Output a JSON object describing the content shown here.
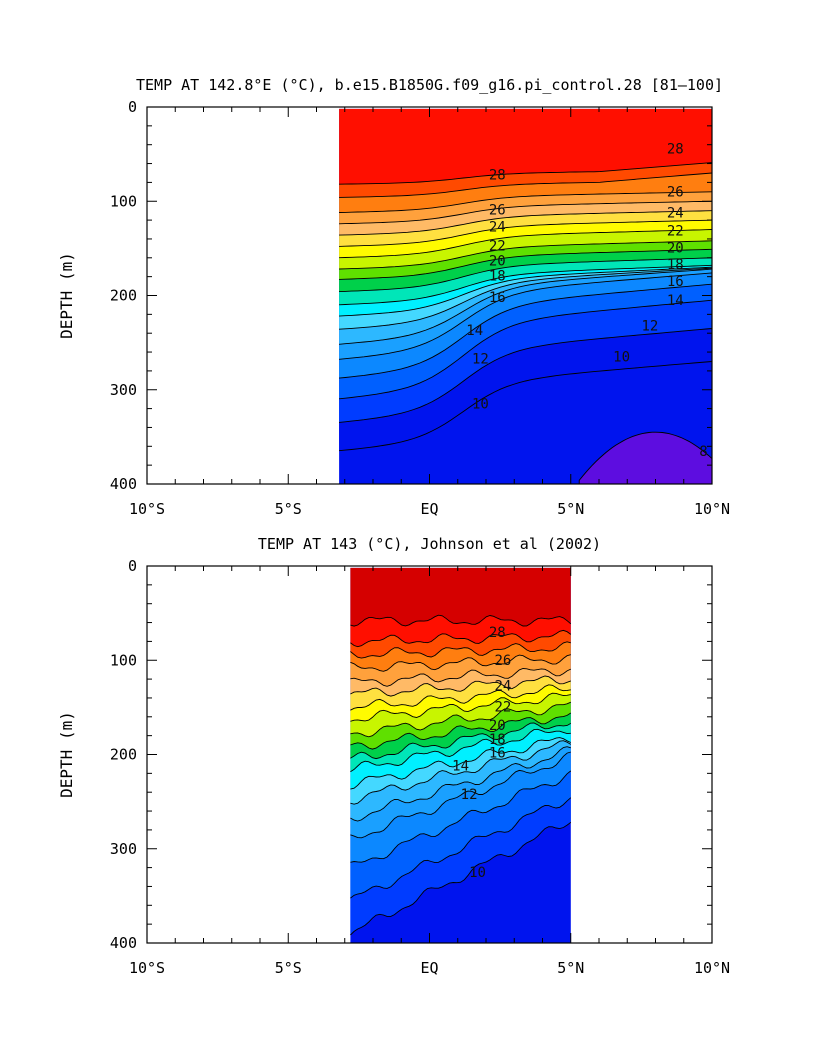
{
  "chart_data": [
    {
      "type": "heatmap",
      "title": "TEMP AT 142.8°E (°C), b.e15.B1850G.f09_g16.pi_control.28 [81–100]",
      "ylabel": "DEPTH (m)",
      "xlabel": "",
      "xlim": [
        -10,
        10
      ],
      "ylim": [
        0,
        400
      ],
      "y_inverted": true,
      "xticks": [
        -10,
        -5,
        0,
        5,
        10
      ],
      "xtick_labels": [
        "10°S",
        "5°S",
        "EQ",
        "5°N",
        "10°N"
      ],
      "yticks": [
        0,
        100,
        200,
        300,
        400
      ],
      "ytick_labels": [
        "0",
        "100",
        "200",
        "300",
        "400"
      ],
      "data_extent_lat": [
        -3.2,
        10
      ],
      "contour_interval": 1,
      "contour_labels": [
        {
          "text": "28",
          "lat": 2.4,
          "depth": 75
        },
        {
          "text": "28",
          "lat": 8.7,
          "depth": 47
        },
        {
          "text": "26",
          "lat": 2.4,
          "depth": 112
        },
        {
          "text": "26",
          "lat": 8.7,
          "depth": 93
        },
        {
          "text": "24",
          "lat": 2.4,
          "depth": 130
        },
        {
          "text": "24",
          "lat": 8.7,
          "depth": 115
        },
        {
          "text": "22",
          "lat": 2.4,
          "depth": 150
        },
        {
          "text": "22",
          "lat": 8.7,
          "depth": 134
        },
        {
          "text": "20",
          "lat": 2.4,
          "depth": 166
        },
        {
          "text": "20",
          "lat": 8.7,
          "depth": 152
        },
        {
          "text": "18",
          "lat": 2.4,
          "depth": 182
        },
        {
          "text": "18",
          "lat": 8.7,
          "depth": 170
        },
        {
          "text": "16",
          "lat": 2.4,
          "depth": 205
        },
        {
          "text": "16",
          "lat": 8.7,
          "depth": 188
        },
        {
          "text": "14",
          "lat": 1.6,
          "depth": 240
        },
        {
          "text": "14",
          "lat": 8.7,
          "depth": 208
        },
        {
          "text": "12",
          "lat": 1.8,
          "depth": 270
        },
        {
          "text": "12",
          "lat": 7.8,
          "depth": 235
        },
        {
          "text": "10",
          "lat": 1.8,
          "depth": 318
        },
        {
          "text": "10",
          "lat": 6.8,
          "depth": 268
        },
        {
          "text": "8",
          "lat": 9.7,
          "depth": 368
        }
      ]
    },
    {
      "type": "heatmap",
      "title": "TEMP AT 143 (°C), Johnson et al (2002)",
      "ylabel": "DEPTH (m)",
      "xlabel": "",
      "xlim": [
        -10,
        10
      ],
      "ylim": [
        0,
        400
      ],
      "y_inverted": true,
      "xticks": [
        -10,
        -5,
        0,
        5,
        10
      ],
      "xtick_labels": [
        "10°S",
        "5°S",
        "EQ",
        "5°N",
        "10°N"
      ],
      "yticks": [
        0,
        100,
        200,
        300,
        400
      ],
      "ytick_labels": [
        "0",
        "100",
        "200",
        "300",
        "400"
      ],
      "data_extent_lat": [
        -2.8,
        5
      ],
      "contour_interval": 1,
      "contour_labels": [
        {
          "text": "28",
          "lat": 2.4,
          "depth": 73
        },
        {
          "text": "26",
          "lat": 2.6,
          "depth": 103
        },
        {
          "text": "24",
          "lat": 2.6,
          "depth": 130
        },
        {
          "text": "22",
          "lat": 2.6,
          "depth": 152
        },
        {
          "text": "20",
          "lat": 2.4,
          "depth": 172
        },
        {
          "text": "18",
          "lat": 2.4,
          "depth": 187
        },
        {
          "text": "16",
          "lat": 2.4,
          "depth": 201
        },
        {
          "text": "14",
          "lat": 1.1,
          "depth": 215
        },
        {
          "text": "12",
          "lat": 1.4,
          "depth": 245
        },
        {
          "text": "10",
          "lat": 1.7,
          "depth": 328
        }
      ]
    }
  ],
  "colors": {
    "t29": "#d50000",
    "t28": "#ff0f00",
    "t27": "#ff4a00",
    "t26": "#ff7e10",
    "t25": "#ffa13c",
    "t24": "#ffba66",
    "t23": "#ffe040",
    "t22": "#fffb00",
    "t21": "#c8f500",
    "t20": "#5fe000",
    "t19": "#00d04a",
    "t18": "#00e6b8",
    "t17": "#00f0ff",
    "t16": "#44d8ff",
    "t15": "#2db8ff",
    "t14": "#1aa0ff",
    "t13": "#0c88ff",
    "t12": "#0060ff",
    "t11": "#003cff",
    "t10": "#0014ee",
    "t8": "#5d0de0"
  }
}
